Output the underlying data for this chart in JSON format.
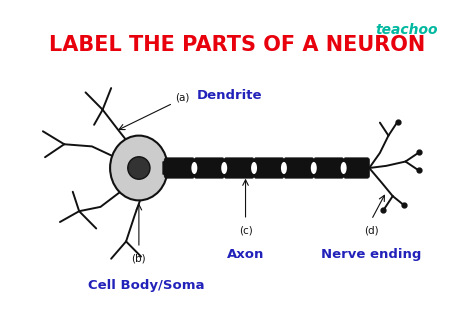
{
  "title": "LABEL THE PARTS OF A NEURON",
  "title_color": "#e8000d",
  "title_fontsize": 15,
  "bg_color": "#7070d0",
  "card_color": "#ffffff",
  "teachoo_color": "#00b8a0",
  "label_color": "#2222bb",
  "label_a": "(a)",
  "label_b": "(b)",
  "label_c": "(c)",
  "label_d": "(d)",
  "name_a": "Dendrite",
  "name_b": "Cell Body/Soma",
  "name_c": "Axon",
  "name_d": "Nerve ending",
  "teachoo_text": "teachoo",
  "fig_w": 4.74,
  "fig_h": 3.36,
  "dpi": 100
}
